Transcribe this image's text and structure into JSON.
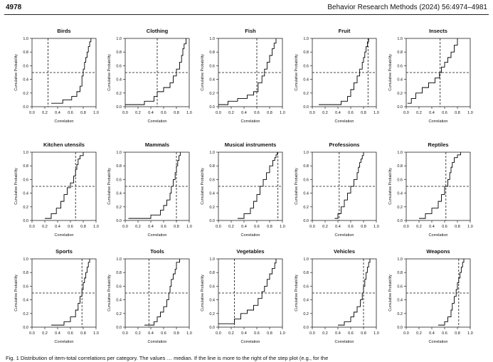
{
  "header": {
    "page_number": "4978",
    "journal": "Behavior Research Methods  (2024) 56:4974–4981"
  },
  "caption": "Fig. 1  Distribution of item-total correlations per category. The values … median. If the line is more to the right of the step plot (e.g., for the",
  "axes": {
    "xlabel": "Correlation",
    "ylabel": "Cumulative Probability",
    "xticks": [
      "0.0",
      "0.2",
      "0.4",
      "0.6",
      "0.8",
      "1.0"
    ],
    "yticks": [
      "0.0",
      "0.2",
      "0.4",
      "0.6",
      "0.8",
      "1.0"
    ]
  },
  "chart_data": [
    {
      "type": "line",
      "title": "Birds",
      "xlim": [
        0,
        1
      ],
      "ylim": [
        0,
        1
      ],
      "median_line": 0.25,
      "x": [
        0.3,
        0.48,
        0.62,
        0.7,
        0.75,
        0.78,
        0.8,
        0.82,
        0.84,
        0.86,
        0.88,
        0.9,
        0.92
      ],
      "y": [
        0.05,
        0.1,
        0.15,
        0.22,
        0.3,
        0.45,
        0.55,
        0.65,
        0.72,
        0.8,
        0.88,
        0.95,
        1.0
      ]
    },
    {
      "type": "line",
      "title": "Clothing",
      "xlim": [
        0,
        1
      ],
      "ylim": [
        0,
        1
      ],
      "median_line": 0.5,
      "x": [
        0.0,
        0.3,
        0.45,
        0.5,
        0.6,
        0.7,
        0.75,
        0.8,
        0.85,
        0.88,
        0.9,
        0.92,
        0.95
      ],
      "y": [
        0.03,
        0.08,
        0.15,
        0.22,
        0.28,
        0.35,
        0.45,
        0.55,
        0.65,
        0.75,
        0.85,
        0.92,
        1.0
      ]
    },
    {
      "type": "line",
      "title": "Fish",
      "xlim": [
        0,
        1
      ],
      "ylim": [
        0,
        1
      ],
      "median_line": 0.6,
      "x": [
        0.0,
        0.15,
        0.3,
        0.45,
        0.55,
        0.62,
        0.68,
        0.72,
        0.76,
        0.8,
        0.84,
        0.87,
        0.9
      ],
      "y": [
        0.03,
        0.08,
        0.12,
        0.17,
        0.22,
        0.35,
        0.45,
        0.55,
        0.65,
        0.75,
        0.85,
        0.93,
        1.0
      ]
    },
    {
      "type": "line",
      "title": "Fruit",
      "xlim": [
        0,
        1
      ],
      "ylim": [
        0,
        1
      ],
      "median_line": 0.87,
      "x": [
        0.1,
        0.45,
        0.55,
        0.6,
        0.65,
        0.7,
        0.74,
        0.78,
        0.8,
        0.82,
        0.84,
        0.86,
        0.88
      ],
      "y": [
        0.03,
        0.08,
        0.15,
        0.25,
        0.35,
        0.45,
        0.55,
        0.65,
        0.72,
        0.8,
        0.88,
        0.95,
        1.0
      ]
    },
    {
      "type": "line",
      "title": "Insects",
      "xlim": [
        0,
        1
      ],
      "ylim": [
        0,
        1
      ],
      "median_line": 0.53,
      "x": [
        0.02,
        0.08,
        0.15,
        0.25,
        0.35,
        0.45,
        0.52,
        0.55,
        0.6,
        0.65,
        0.7,
        0.75,
        0.8
      ],
      "y": [
        0.05,
        0.12,
        0.2,
        0.28,
        0.35,
        0.42,
        0.5,
        0.58,
        0.65,
        0.72,
        0.8,
        0.9,
        1.0
      ]
    },
    {
      "type": "line",
      "title": "Kitchen utensils",
      "xlim": [
        0,
        1
      ],
      "ylim": [
        0,
        1
      ],
      "median_line": 0.68,
      "x": [
        0.2,
        0.3,
        0.38,
        0.45,
        0.5,
        0.55,
        0.6,
        0.65,
        0.68,
        0.7,
        0.72,
        0.75,
        0.8
      ],
      "y": [
        0.03,
        0.1,
        0.18,
        0.28,
        0.38,
        0.48,
        0.55,
        0.65,
        0.75,
        0.82,
        0.9,
        0.95,
        1.0
      ]
    },
    {
      "type": "line",
      "title": "Mammals",
      "xlim": [
        0,
        1
      ],
      "ylim": [
        0,
        1
      ],
      "median_line": 0.8,
      "x": [
        0.05,
        0.4,
        0.55,
        0.6,
        0.65,
        0.7,
        0.72,
        0.75,
        0.78,
        0.8,
        0.82,
        0.84,
        0.86
      ],
      "y": [
        0.03,
        0.08,
        0.15,
        0.22,
        0.3,
        0.4,
        0.5,
        0.6,
        0.7,
        0.8,
        0.88,
        0.95,
        1.0
      ]
    },
    {
      "type": "line",
      "title": "Musical instruments",
      "xlim": [
        0,
        1
      ],
      "ylim": [
        0,
        1
      ],
      "median_line": 0.93,
      "x": [
        0.3,
        0.4,
        0.5,
        0.55,
        0.6,
        0.65,
        0.7,
        0.75,
        0.8,
        0.85,
        0.88,
        0.9,
        0.92
      ],
      "y": [
        0.03,
        0.1,
        0.18,
        0.28,
        0.38,
        0.5,
        0.6,
        0.7,
        0.8,
        0.88,
        0.92,
        0.96,
        1.0
      ]
    },
    {
      "type": "line",
      "title": "Professions",
      "xlim": [
        0,
        1
      ],
      "ylim": [
        0,
        1
      ],
      "median_line": 0.42,
      "x": [
        0.35,
        0.4,
        0.45,
        0.5,
        0.55,
        0.6,
        0.65,
        0.7,
        0.72,
        0.74,
        0.76,
        0.78,
        0.8
      ],
      "y": [
        0.03,
        0.1,
        0.2,
        0.3,
        0.4,
        0.5,
        0.6,
        0.7,
        0.78,
        0.85,
        0.9,
        0.95,
        1.0
      ]
    },
    {
      "type": "line",
      "title": "Reptiles",
      "xlim": [
        0,
        1
      ],
      "ylim": [
        0,
        1
      ],
      "median_line": 0.62,
      "x": [
        0.2,
        0.3,
        0.4,
        0.5,
        0.55,
        0.6,
        0.65,
        0.68,
        0.7,
        0.72,
        0.75,
        0.8,
        0.85
      ],
      "y": [
        0.03,
        0.1,
        0.18,
        0.28,
        0.38,
        0.5,
        0.6,
        0.7,
        0.78,
        0.85,
        0.92,
        0.96,
        1.0
      ]
    },
    {
      "type": "line",
      "title": "Sports",
      "xlim": [
        0,
        1
      ],
      "ylim": [
        0,
        1
      ],
      "median_line": 0.78,
      "x": [
        0.3,
        0.5,
        0.6,
        0.68,
        0.72,
        0.75,
        0.78,
        0.8,
        0.82,
        0.84,
        0.86,
        0.88,
        0.9
      ],
      "y": [
        0.03,
        0.08,
        0.15,
        0.25,
        0.35,
        0.45,
        0.55,
        0.65,
        0.72,
        0.8,
        0.88,
        0.95,
        1.0
      ]
    },
    {
      "type": "line",
      "title": "Tools",
      "xlim": [
        0,
        1
      ],
      "ylim": [
        0,
        1
      ],
      "median_line": 0.37,
      "x": [
        0.3,
        0.45,
        0.5,
        0.55,
        0.6,
        0.65,
        0.68,
        0.7,
        0.72,
        0.75,
        0.78,
        0.8,
        0.85
      ],
      "y": [
        0.03,
        0.08,
        0.15,
        0.22,
        0.3,
        0.4,
        0.5,
        0.6,
        0.7,
        0.78,
        0.85,
        0.95,
        1.0
      ]
    },
    {
      "type": "line",
      "title": "Vegetables",
      "xlim": [
        0,
        1
      ],
      "ylim": [
        0,
        1
      ],
      "median_line": 0.25,
      "x": [
        0.0,
        0.25,
        0.35,
        0.45,
        0.55,
        0.62,
        0.68,
        0.72,
        0.76,
        0.8,
        0.84,
        0.88,
        0.9
      ],
      "y": [
        0.05,
        0.12,
        0.2,
        0.25,
        0.32,
        0.42,
        0.52,
        0.6,
        0.7,
        0.78,
        0.86,
        0.94,
        1.0
      ]
    },
    {
      "type": "line",
      "title": "Vehicles",
      "xlim": [
        0,
        1
      ],
      "ylim": [
        0,
        1
      ],
      "median_line": 0.8,
      "x": [
        0.4,
        0.5,
        0.6,
        0.65,
        0.7,
        0.75,
        0.78,
        0.8,
        0.82,
        0.84,
        0.86,
        0.88,
        0.9
      ],
      "y": [
        0.03,
        0.08,
        0.15,
        0.22,
        0.3,
        0.4,
        0.5,
        0.6,
        0.7,
        0.8,
        0.88,
        0.95,
        1.0
      ]
    },
    {
      "type": "line",
      "title": "Weapons",
      "xlim": [
        0,
        1
      ],
      "ylim": [
        0,
        1
      ],
      "median_line": 0.82,
      "x": [
        0.5,
        0.6,
        0.65,
        0.7,
        0.72,
        0.75,
        0.78,
        0.8,
        0.82,
        0.84,
        0.86,
        0.88,
        0.9
      ],
      "y": [
        0.03,
        0.08,
        0.15,
        0.25,
        0.35,
        0.45,
        0.55,
        0.65,
        0.72,
        0.8,
        0.88,
        0.95,
        1.0
      ]
    }
  ]
}
